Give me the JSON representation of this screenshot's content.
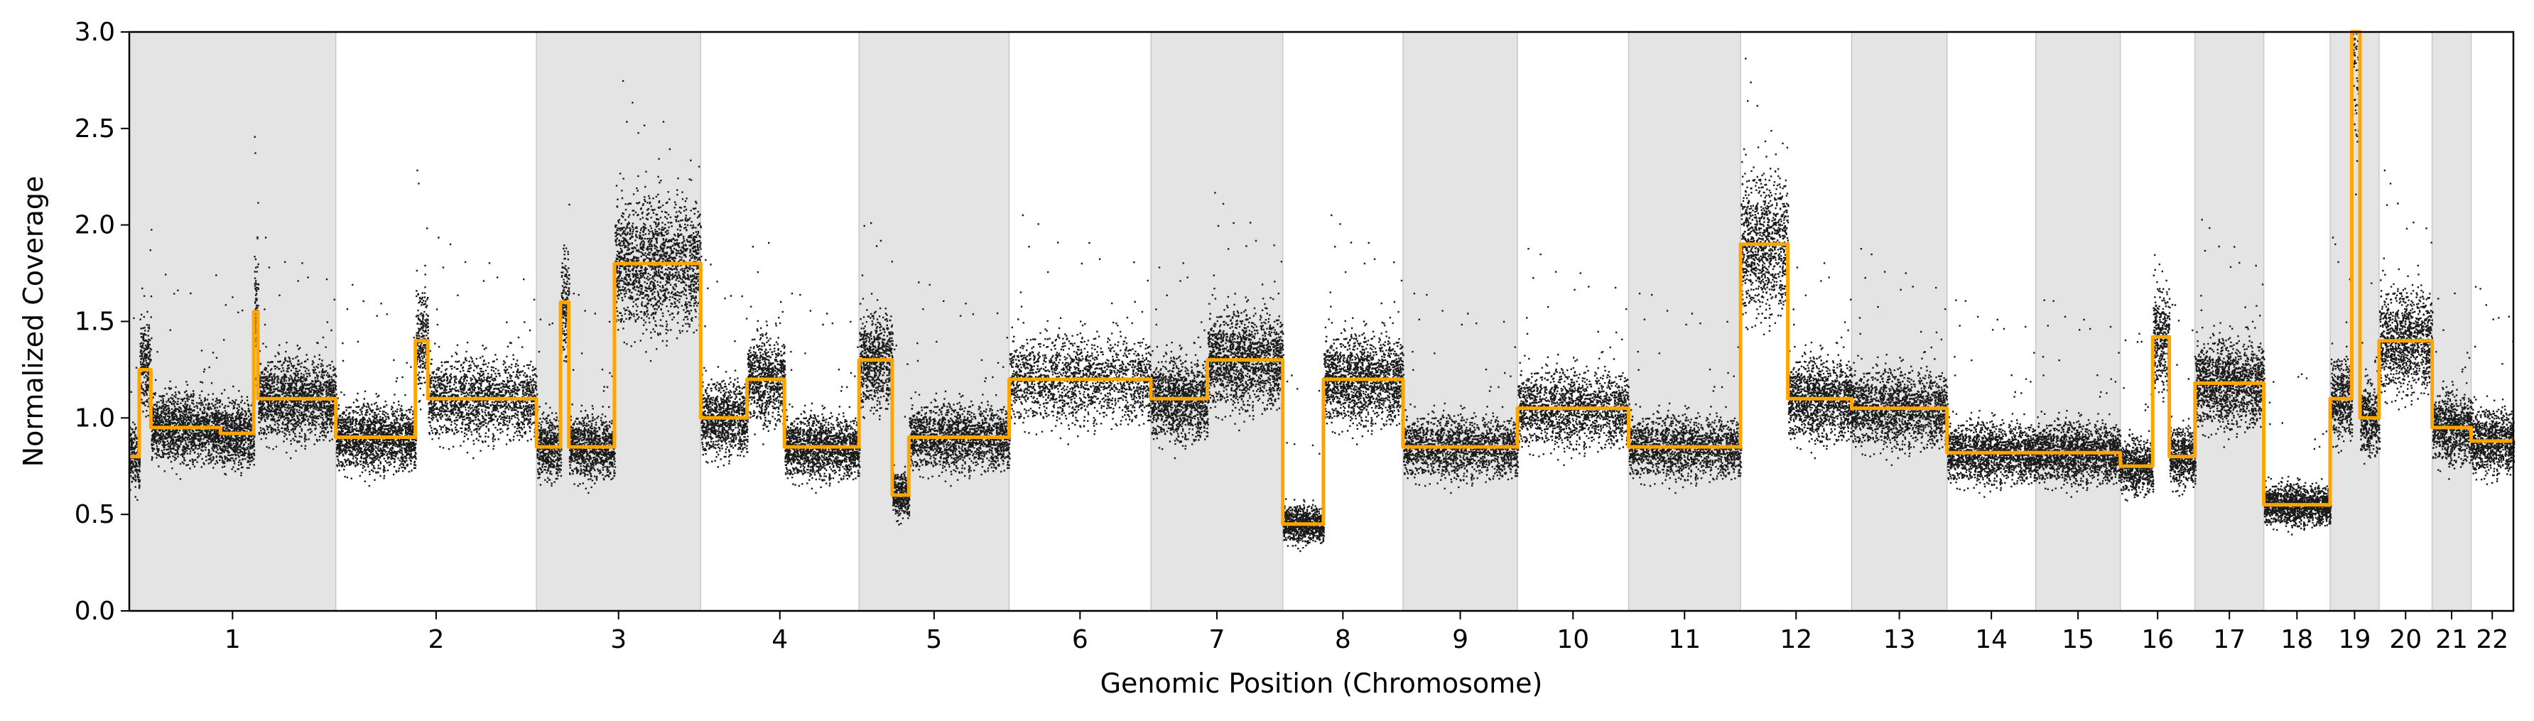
{
  "chart_data": {
    "type": "scatter",
    "xlabel": "Genomic Position (Chromosome)",
    "ylabel": "Normalized Coverage",
    "ylim": [
      0.0,
      3.0
    ],
    "yticks": [
      "0.0",
      "0.5",
      "1.0",
      "1.5",
      "2.0",
      "2.5",
      "3.0"
    ],
    "grid": false,
    "legend": "none",
    "colors": {
      "points": "#1a1a1a",
      "segments": "#ffa500",
      "band": "#e4e4e4",
      "band_edge": "#c8c8c8"
    },
    "chromosomes": [
      {
        "label": "1",
        "x": [
          0,
          249
        ],
        "shaded": true,
        "mean": 0.95
      },
      {
        "label": "2",
        "x": [
          249,
          491
        ],
        "shaded": false,
        "mean": 1.05
      },
      {
        "label": "3",
        "x": [
          491,
          689
        ],
        "shaded": true,
        "mean": 1.45
      },
      {
        "label": "4",
        "x": [
          689,
          880
        ],
        "shaded": false,
        "mean": 0.9
      },
      {
        "label": "5",
        "x": [
          880,
          1061
        ],
        "shaded": true,
        "mean": 0.95
      },
      {
        "label": "6",
        "x": [
          1061,
          1232
        ],
        "shaded": false,
        "mean": 1.2
      },
      {
        "label": "7",
        "x": [
          1232,
          1391
        ],
        "shaded": true,
        "mean": 1.25
      },
      {
        "label": "8",
        "x": [
          1391,
          1536
        ],
        "shaded": false,
        "mean": 1.0
      },
      {
        "label": "9",
        "x": [
          1536,
          1674
        ],
        "shaded": true,
        "mean": 0.9
      },
      {
        "label": "10",
        "x": [
          1674,
          1808
        ],
        "shaded": false,
        "mean": 1.0
      },
      {
        "label": "11",
        "x": [
          1808,
          1943
        ],
        "shaded": true,
        "mean": 0.95
      },
      {
        "label": "12",
        "x": [
          1943,
          2077
        ],
        "shaded": false,
        "mean": 1.35
      },
      {
        "label": "13",
        "x": [
          2077,
          2192
        ],
        "shaded": true,
        "mean": 1.05
      },
      {
        "label": "14",
        "x": [
          2192,
          2299
        ],
        "shaded": false,
        "mean": 0.85
      },
      {
        "label": "15",
        "x": [
          2299,
          2401
        ],
        "shaded": true,
        "mean": 0.82
      },
      {
        "label": "16",
        "x": [
          2401,
          2491
        ],
        "shaded": false,
        "mean": 0.9
      },
      {
        "label": "17",
        "x": [
          2491,
          2574
        ],
        "shaded": true,
        "mean": 1.1
      },
      {
        "label": "18",
        "x": [
          2574,
          2654
        ],
        "shaded": false,
        "mean": 0.55
      },
      {
        "label": "19",
        "x": [
          2654,
          2713
        ],
        "shaded": true,
        "mean": 1.3
      },
      {
        "label": "20",
        "x": [
          2713,
          2777
        ],
        "shaded": false,
        "mean": 1.4
      },
      {
        "label": "21",
        "x": [
          2777,
          2824
        ],
        "shaded": true,
        "mean": 0.95
      },
      {
        "label": "22",
        "x": [
          2824,
          2875
        ],
        "shaded": false,
        "mean": 0.9
      }
    ],
    "segments": [
      {
        "chr": "1",
        "x": [
          0,
          12
        ],
        "y": 0.8
      },
      {
        "chr": "1",
        "x": [
          12,
          26
        ],
        "y": 1.25
      },
      {
        "chr": "1",
        "x": [
          26,
          110
        ],
        "y": 0.95
      },
      {
        "chr": "1",
        "x": [
          110,
          150
        ],
        "y": 0.92
      },
      {
        "chr": "1",
        "x": [
          150,
          155
        ],
        "y": 1.55
      },
      {
        "chr": "1",
        "x": [
          155,
          249
        ],
        "y": 1.1
      },
      {
        "chr": "2",
        "x": [
          249,
          345
        ],
        "y": 0.9
      },
      {
        "chr": "2",
        "x": [
          345,
          360
        ],
        "y": 1.4
      },
      {
        "chr": "2",
        "x": [
          360,
          491
        ],
        "y": 1.1
      },
      {
        "chr": "3",
        "x": [
          491,
          520
        ],
        "y": 0.85
      },
      {
        "chr": "3",
        "x": [
          520,
          530
        ],
        "y": 1.6
      },
      {
        "chr": "3",
        "x": [
          530,
          585
        ],
        "y": 0.85
      },
      {
        "chr": "3",
        "x": [
          585,
          689
        ],
        "y": 1.8
      },
      {
        "chr": "4",
        "x": [
          689,
          745
        ],
        "y": 1.0
      },
      {
        "chr": "4",
        "x": [
          745,
          790
        ],
        "y": 1.2
      },
      {
        "chr": "4",
        "x": [
          790,
          880
        ],
        "y": 0.85
      },
      {
        "chr": "5",
        "x": [
          880,
          920
        ],
        "y": 1.3
      },
      {
        "chr": "5",
        "x": [
          920,
          940
        ],
        "y": 0.6
      },
      {
        "chr": "5",
        "x": [
          940,
          1061
        ],
        "y": 0.9
      },
      {
        "chr": "6",
        "x": [
          1061,
          1232
        ],
        "y": 1.2
      },
      {
        "chr": "7",
        "x": [
          1232,
          1300
        ],
        "y": 1.1
      },
      {
        "chr": "7",
        "x": [
          1300,
          1391
        ],
        "y": 1.3
      },
      {
        "chr": "8",
        "x": [
          1391,
          1440
        ],
        "y": 0.45
      },
      {
        "chr": "8",
        "x": [
          1440,
          1536
        ],
        "y": 1.2
      },
      {
        "chr": "9",
        "x": [
          1536,
          1674
        ],
        "y": 0.85
      },
      {
        "chr": "10",
        "x": [
          1674,
          1808
        ],
        "y": 1.05
      },
      {
        "chr": "11",
        "x": [
          1808,
          1943
        ],
        "y": 0.85
      },
      {
        "chr": "12",
        "x": [
          1943,
          2000
        ],
        "y": 1.9
      },
      {
        "chr": "12",
        "x": [
          2000,
          2077
        ],
        "y": 1.1
      },
      {
        "chr": "13",
        "x": [
          2077,
          2192
        ],
        "y": 1.05
      },
      {
        "chr": "14",
        "x": [
          2192,
          2299
        ],
        "y": 0.82
      },
      {
        "chr": "15",
        "x": [
          2299,
          2401
        ],
        "y": 0.82
      },
      {
        "chr": "16",
        "x": [
          2401,
          2440
        ],
        "y": 0.75
      },
      {
        "chr": "16",
        "x": [
          2440,
          2460
        ],
        "y": 1.42
      },
      {
        "chr": "16",
        "x": [
          2460,
          2491
        ],
        "y": 0.8
      },
      {
        "chr": "17",
        "x": [
          2491,
          2574
        ],
        "y": 1.18
      },
      {
        "chr": "18",
        "x": [
          2574,
          2654
        ],
        "y": 0.55
      },
      {
        "chr": "19",
        "x": [
          2654,
          2680
        ],
        "y": 1.1
      },
      {
        "chr": "19",
        "x": [
          2680,
          2690
        ],
        "y": 3.0
      },
      {
        "chr": "19",
        "x": [
          2690,
          2713
        ],
        "y": 1.0
      },
      {
        "chr": "20",
        "x": [
          2713,
          2777
        ],
        "y": 1.4
      },
      {
        "chr": "21",
        "x": [
          2777,
          2824
        ],
        "y": 0.95
      },
      {
        "chr": "22",
        "x": [
          2824,
          2875
        ],
        "y": 0.88
      }
    ]
  }
}
